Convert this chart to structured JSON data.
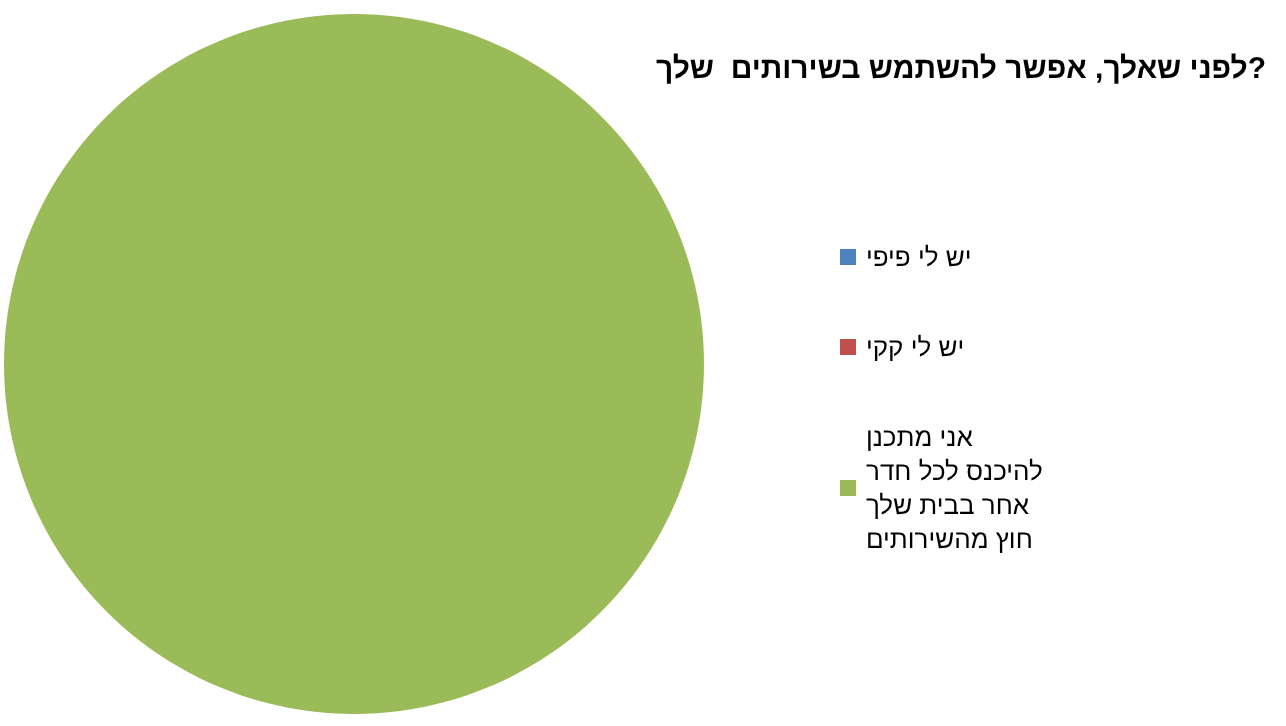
{
  "chart_data": {
    "type": "pie",
    "title": "לפני שאלך, אפשר להשתמש בשירותים  שלך?",
    "categories": [
      "יש לי פיפי",
      "יש לי קקי",
      "אני מתכנן להיכנס לכל חדר אחר בבית שלך חוץ מהשירותים"
    ],
    "values": [
      0,
      0,
      100
    ],
    "colors": [
      "#4f81bd",
      "#c0504d",
      "#9bbb59"
    ],
    "legend": "right"
  }
}
